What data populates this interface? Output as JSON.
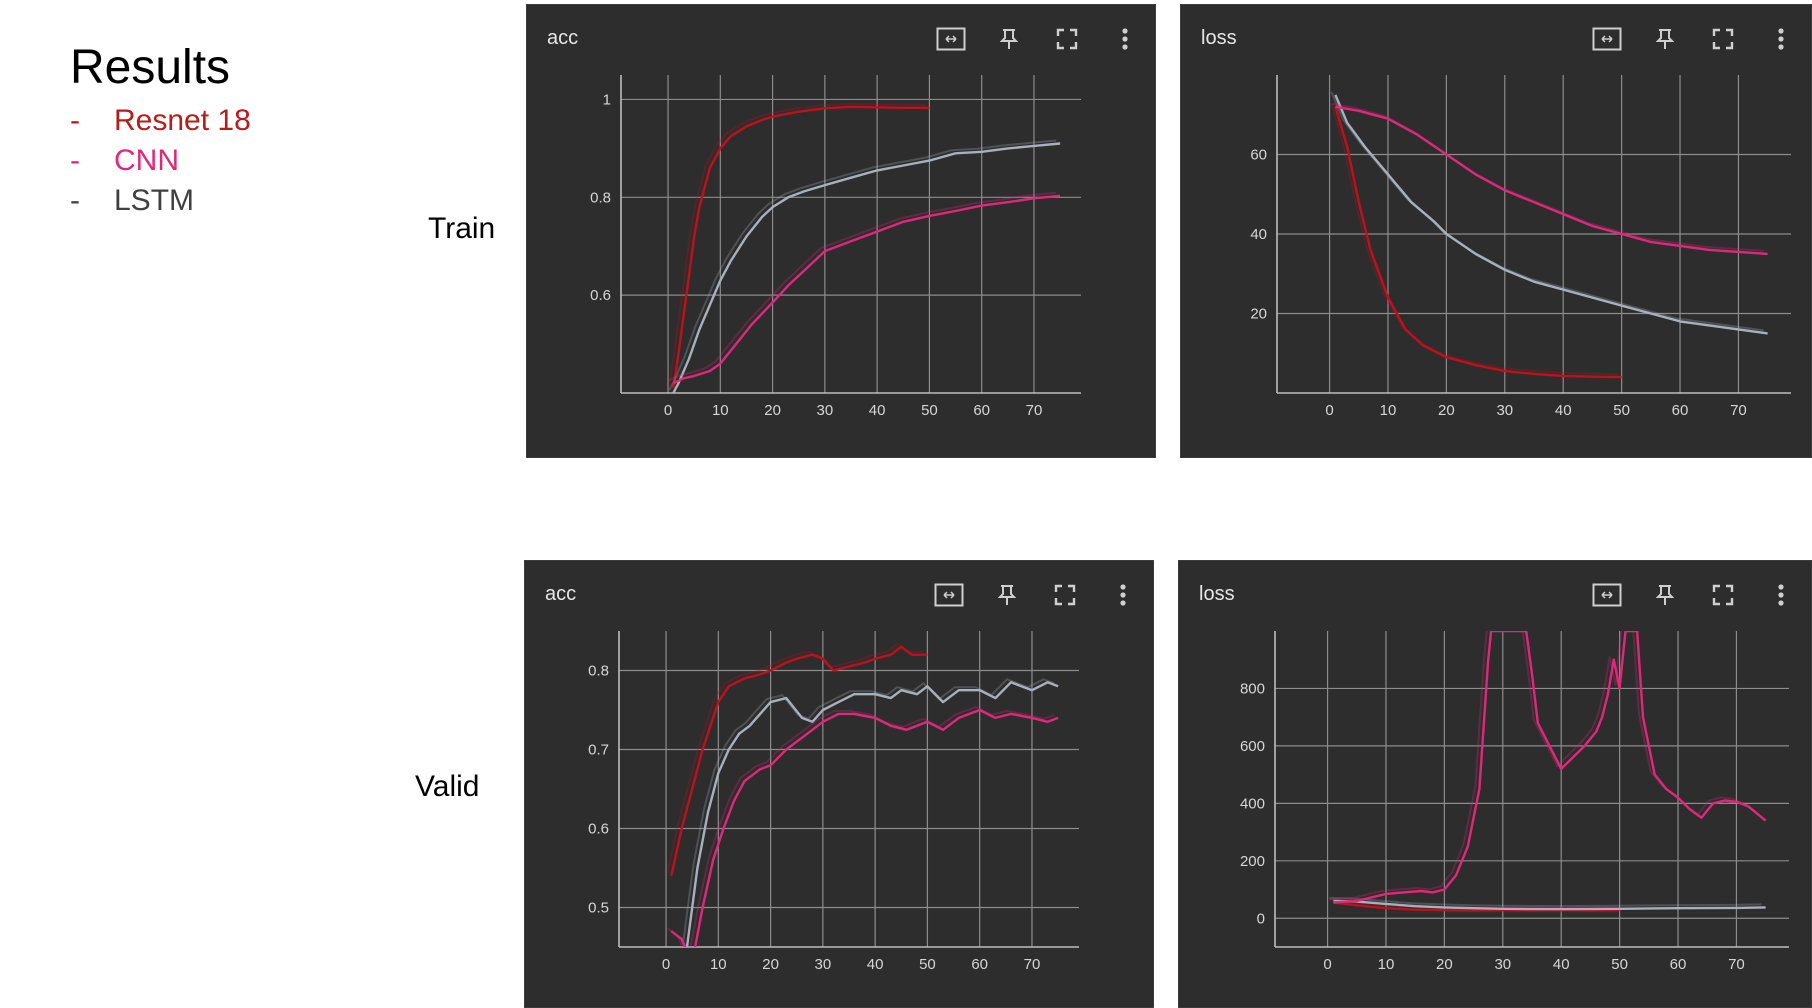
{
  "legend": {
    "title": "Results",
    "entries": [
      {
        "dash": "-",
        "label": "Resnet 18",
        "color": "#b71c1c"
      },
      {
        "dash": "-",
        "label": "CNN",
        "color": "#e0287a"
      },
      {
        "dash": "-",
        "label": "LSTM",
        "color": "#404040"
      }
    ]
  },
  "rows": {
    "train": "Train",
    "valid": "Valid"
  },
  "colors": {
    "resnet": "#c0101c",
    "cnn": "#e0287a",
    "lstm": "#a7b1bd",
    "panel_bg": "#2d2d2d",
    "grid": "#8c8c8c"
  },
  "toolbar_icons": [
    "fit-domain-icon",
    "pin-icon",
    "fullscreen-icon",
    "more-vert-icon"
  ],
  "chart_data": [
    {
      "id": "train-acc",
      "type": "line",
      "title": "acc",
      "xlim": [
        -9,
        79
      ],
      "ylim": [
        0.4,
        1.05
      ],
      "xticks": [
        0,
        10,
        20,
        30,
        40,
        50,
        60,
        70
      ],
      "yticks": [
        0.6,
        0.8,
        1
      ],
      "ytick_labels": [
        "0.6",
        "0.8",
        "1"
      ],
      "series": [
        {
          "key": "resnet",
          "x": [
            1,
            2,
            3,
            4,
            5,
            6,
            8,
            10,
            12,
            15,
            18,
            20,
            25,
            30,
            35,
            40,
            45,
            50
          ],
          "y": [
            0.41,
            0.48,
            0.56,
            0.64,
            0.72,
            0.78,
            0.86,
            0.9,
            0.925,
            0.945,
            0.958,
            0.965,
            0.975,
            0.982,
            0.985,
            0.984,
            0.983,
            0.983
          ]
        },
        {
          "key": "lstm",
          "x": [
            1,
            2,
            4,
            6,
            8,
            10,
            12,
            15,
            18,
            20,
            23,
            26,
            30,
            35,
            40,
            45,
            50,
            55,
            60,
            65,
            70,
            75
          ],
          "y": [
            0.4,
            0.42,
            0.47,
            0.53,
            0.58,
            0.63,
            0.67,
            0.72,
            0.76,
            0.78,
            0.8,
            0.812,
            0.825,
            0.84,
            0.855,
            0.865,
            0.875,
            0.89,
            0.893,
            0.9,
            0.905,
            0.91
          ]
        },
        {
          "key": "cnn",
          "x": [
            1,
            3,
            5,
            8,
            10,
            13,
            16,
            20,
            23,
            26,
            30,
            35,
            40,
            45,
            50,
            55,
            60,
            65,
            70,
            75
          ],
          "y": [
            0.42,
            0.43,
            0.435,
            0.445,
            0.46,
            0.5,
            0.54,
            0.585,
            0.62,
            0.65,
            0.69,
            0.71,
            0.73,
            0.75,
            0.762,
            0.772,
            0.783,
            0.79,
            0.798,
            0.803
          ]
        }
      ]
    },
    {
      "id": "train-loss",
      "type": "line",
      "title": "loss",
      "xlim": [
        -9,
        79
      ],
      "ylim": [
        0,
        80
      ],
      "xticks": [
        0,
        10,
        20,
        30,
        40,
        50,
        60,
        70
      ],
      "yticks": [
        20,
        40,
        60
      ],
      "ytick_labels": [
        "20",
        "40",
        "60"
      ],
      "series": [
        {
          "key": "resnet",
          "x": [
            1,
            3,
            5,
            7,
            10,
            13,
            16,
            20,
            25,
            30,
            35,
            40,
            45,
            50
          ],
          "y": [
            72,
            62,
            48,
            36,
            24,
            16,
            12,
            9,
            7,
            5.5,
            4.8,
            4.3,
            4.1,
            4
          ]
        },
        {
          "key": "lstm",
          "x": [
            1,
            3,
            6,
            10,
            14,
            18,
            20,
            25,
            30,
            35,
            40,
            45,
            50,
            55,
            60,
            65,
            70,
            75
          ],
          "y": [
            75,
            68,
            62,
            55,
            48,
            43,
            40,
            35,
            31,
            28,
            26,
            24,
            22,
            20,
            18,
            17,
            16,
            15
          ]
        },
        {
          "key": "cnn",
          "x": [
            1,
            5,
            10,
            15,
            20,
            25,
            30,
            35,
            40,
            45,
            50,
            55,
            60,
            65,
            70,
            75
          ],
          "y": [
            72,
            71,
            69,
            65,
            60,
            55,
            51,
            48,
            45,
            42,
            40,
            38,
            37,
            36,
            35.5,
            35
          ]
        }
      ]
    },
    {
      "id": "valid-acc",
      "type": "line",
      "title": "acc",
      "xlim": [
        -9,
        79
      ],
      "ylim": [
        0.45,
        0.85
      ],
      "xticks": [
        0,
        10,
        20,
        30,
        40,
        50,
        60,
        70
      ],
      "yticks": [
        0.5,
        0.6,
        0.7,
        0.8
      ],
      "ytick_labels": [
        "0.5",
        "0.6",
        "0.7",
        "0.8"
      ],
      "series": [
        {
          "key": "resnet",
          "x": [
            1,
            3,
            5,
            7,
            9,
            10,
            12,
            15,
            18,
            20,
            23,
            25,
            28,
            30,
            32,
            35,
            38,
            40,
            43,
            45,
            47,
            50
          ],
          "y": [
            0.54,
            0.6,
            0.65,
            0.7,
            0.74,
            0.76,
            0.78,
            0.79,
            0.795,
            0.8,
            0.81,
            0.815,
            0.82,
            0.815,
            0.8,
            0.805,
            0.81,
            0.815,
            0.82,
            0.83,
            0.82,
            0.82
          ]
        },
        {
          "key": "lstm",
          "x": [
            4,
            6,
            8,
            10,
            12,
            14,
            16,
            18,
            20,
            23,
            26,
            28,
            30,
            33,
            36,
            40,
            43,
            45,
            48,
            50,
            53,
            56,
            60,
            63,
            66,
            70,
            73,
            75
          ],
          "y": [
            0.45,
            0.55,
            0.62,
            0.67,
            0.7,
            0.72,
            0.73,
            0.745,
            0.76,
            0.765,
            0.74,
            0.735,
            0.75,
            0.76,
            0.77,
            0.77,
            0.765,
            0.775,
            0.77,
            0.78,
            0.76,
            0.775,
            0.775,
            0.765,
            0.785,
            0.775,
            0.785,
            0.78
          ]
        },
        {
          "key": "cnn",
          "x": [
            1,
            3,
            5,
            7,
            9,
            11,
            13,
            15,
            18,
            20,
            23,
            26,
            30,
            33,
            36,
            40,
            43,
            46,
            50,
            53,
            56,
            60,
            63,
            66,
            70,
            73,
            75
          ],
          "y": [
            0.47,
            0.46,
            0.43,
            0.5,
            0.56,
            0.6,
            0.635,
            0.66,
            0.675,
            0.68,
            0.7,
            0.715,
            0.735,
            0.745,
            0.745,
            0.74,
            0.73,
            0.725,
            0.735,
            0.725,
            0.74,
            0.75,
            0.74,
            0.745,
            0.74,
            0.735,
            0.74
          ]
        }
      ]
    },
    {
      "id": "valid-loss",
      "type": "line",
      "title": "loss",
      "xlim": [
        -9,
        79
      ],
      "ylim": [
        -100,
        1000
      ],
      "xticks": [
        0,
        10,
        20,
        30,
        40,
        50,
        60,
        70
      ],
      "yticks": [
        0,
        200,
        400,
        600,
        800
      ],
      "ytick_labels": [
        "0",
        "200",
        "400",
        "600",
        "800"
      ],
      "series": [
        {
          "key": "resnet",
          "x": [
            1,
            5,
            10,
            15,
            20,
            25,
            30,
            35,
            40,
            45,
            50
          ],
          "y": [
            55,
            45,
            35,
            30,
            28,
            27,
            28,
            27,
            28,
            27,
            28
          ]
        },
        {
          "key": "lstm",
          "x": [
            1,
            5,
            10,
            15,
            20,
            25,
            30,
            40,
            50,
            60,
            70,
            75
          ],
          "y": [
            60,
            58,
            50,
            42,
            38,
            35,
            33,
            32,
            33,
            35,
            36,
            38
          ]
        },
        {
          "key": "cnn",
          "x": [
            1,
            5,
            10,
            13,
            16,
            18,
            20,
            22,
            24,
            26,
            27.5,
            28,
            34,
            35,
            36,
            38,
            40,
            42,
            44,
            46,
            47,
            48,
            49,
            50,
            51,
            53,
            54,
            56,
            58,
            60,
            62,
            64,
            66,
            68,
            70,
            72,
            75
          ],
          "y": [
            55,
            60,
            85,
            90,
            95,
            90,
            100,
            150,
            250,
            450,
            900,
            1000,
            1000,
            850,
            680,
            600,
            520,
            560,
            600,
            650,
            700,
            780,
            900,
            800,
            1000,
            1000,
            700,
            500,
            450,
            420,
            380,
            350,
            400,
            410,
            405,
            390,
            340
          ]
        }
      ]
    }
  ]
}
